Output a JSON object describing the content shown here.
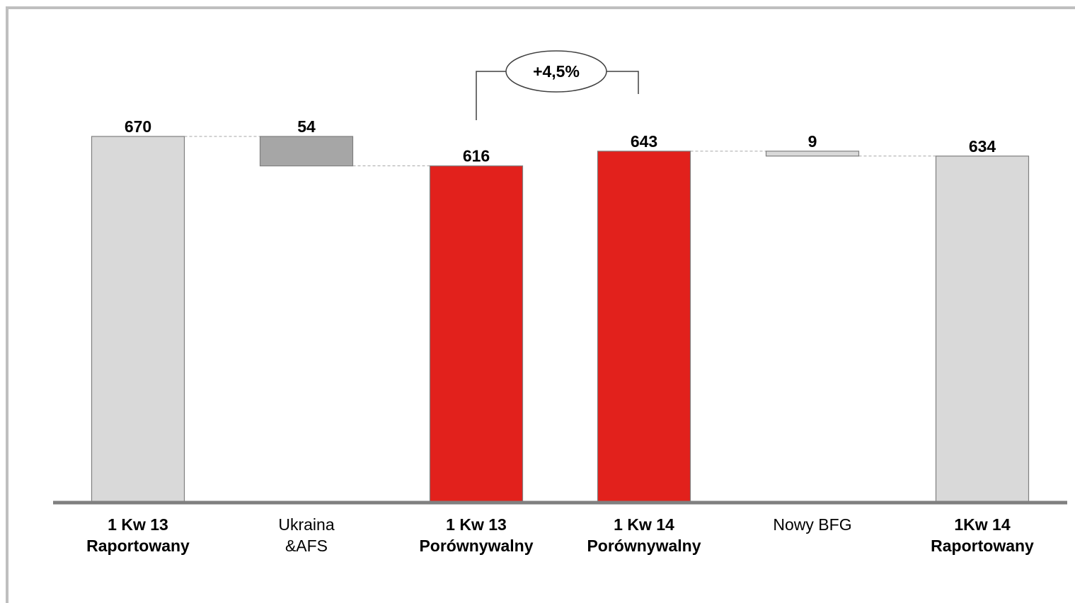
{
  "chart_data": {
    "type": "waterfall",
    "title": "",
    "xlabel": "",
    "ylabel": "",
    "grid": false,
    "bars": [
      {
        "label_lines": [
          "1 Kw 13",
          "Raportowany"
        ],
        "label_bold": true,
        "value_label": "670",
        "base": 0,
        "top": 670,
        "color": "#d9d9d9"
      },
      {
        "label_lines": [
          "Ukraina",
          "&AFS"
        ],
        "label_bold": false,
        "value_label": "54",
        "base": 616,
        "top": 670,
        "color": "#a6a6a6"
      },
      {
        "label_lines": [
          "1 Kw 13",
          "Porównywalny"
        ],
        "label_bold": true,
        "value_label": "616",
        "base": 0,
        "top": 616,
        "color": "#e2211c"
      },
      {
        "label_lines": [
          "1 Kw 14",
          "Porównywalny"
        ],
        "label_bold": true,
        "value_label": "643",
        "base": 0,
        "top": 643,
        "color": "#e2211c"
      },
      {
        "label_lines": [
          "Nowy BFG"
        ],
        "label_bold": false,
        "value_label": "9",
        "base": 634,
        "top": 643,
        "color": "#d9d9d9"
      },
      {
        "label_lines": [
          "1Kw 14",
          "Raportowany"
        ],
        "label_bold": true,
        "value_label": "634",
        "base": 0,
        "top": 634,
        "color": "#d9d9d9"
      }
    ],
    "annotation": {
      "text": "+4,5%",
      "from_bar": 2,
      "to_bar": 3
    },
    "colors": {
      "axis": "#808080",
      "frame": "#bfbfbf",
      "bar_stroke": "#7f7f7f",
      "connector": "#a6a6a6"
    }
  }
}
